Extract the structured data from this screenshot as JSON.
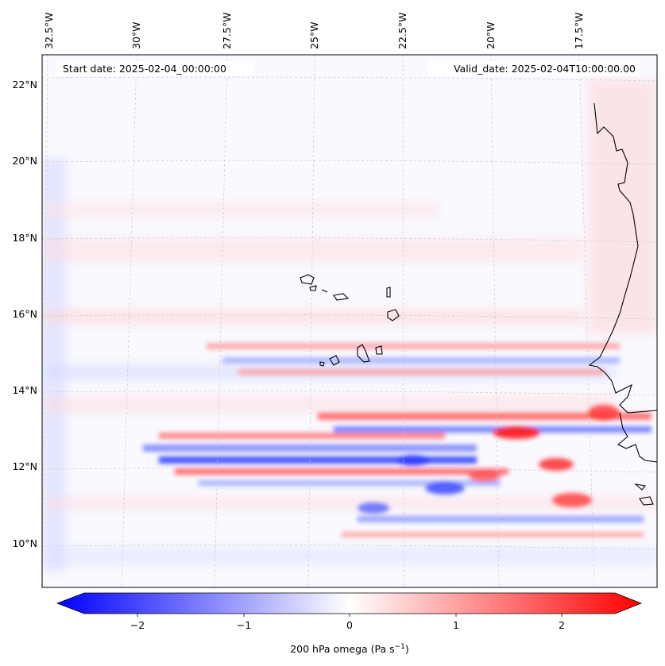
{
  "header": {
    "start_date": "Start date: 2025-02-04_00:00:00",
    "valid_date": "Valid_date: 2025-02-04T10:00:00.00"
  },
  "map": {
    "region": "Eastern tropical North Atlantic / West Africa coast",
    "lon_labels": [
      "32.5°W",
      "30°W",
      "27.5°W",
      "25°W",
      "22.5°W",
      "20°W",
      "17.5°W"
    ],
    "lat_labels": [
      "22°N",
      "20°N",
      "18°N",
      "16°N",
      "14°N",
      "12°N",
      "10°N"
    ],
    "colors": {
      "positive": "#ff0000",
      "negative": "#0000ff",
      "neutral": "#ffffff",
      "coastline": "#000000",
      "gridline": "#c8c8c8"
    }
  },
  "colorbar": {
    "ticks": [
      "−2",
      "−1",
      "0",
      "1",
      "2"
    ],
    "label": "200 hPa omega (Pa s",
    "label_superscript": "−1",
    "label_suffix": ")",
    "range": [
      -2.6,
      2.6
    ],
    "colors": {
      "min": "#0000ff",
      "mid": "#ffffff",
      "max": "#ff0000"
    }
  }
}
